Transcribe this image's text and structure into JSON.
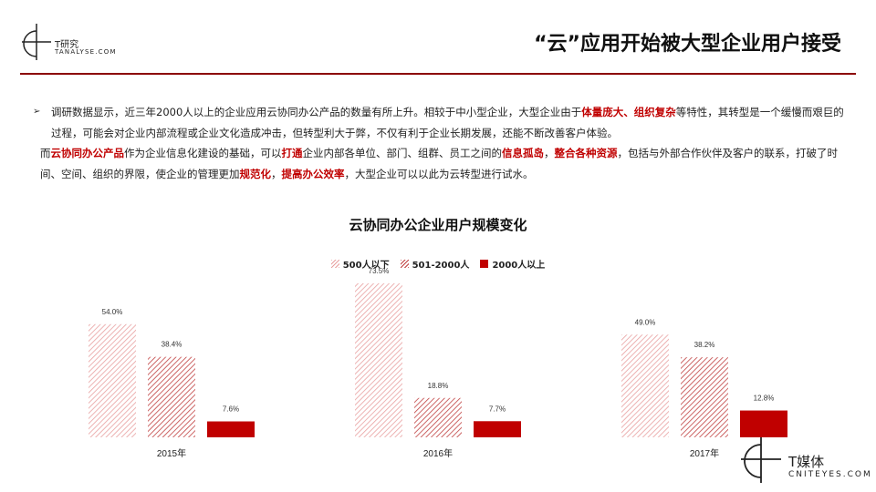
{
  "header": {
    "logo_brand": "T研究",
    "logo_site": "TANALYSE.COM",
    "title": "“云”应用开始被大型企业用户接受"
  },
  "body": {
    "bullet": "➢",
    "p1": [
      {
        "t": "调研数据显示，近三年2000人以上的企业应用云协同办公产品的数量有所上升。相较于中小型企业，大型企业由于",
        "hl": false
      },
      {
        "t": "体量庞大、组织复杂",
        "hl": true
      },
      {
        "t": "等特性，其转型是一个缓慢而艰巨的过程，可能会对企业内部流程或企业文化造成冲击，但转型利大于弊，不仅有利于企业长期发展，还能不断改善客户体验。",
        "hl": false
      }
    ],
    "p2": [
      {
        "t": "而",
        "hl": false
      },
      {
        "t": "云协同办公产品",
        "hl": true
      },
      {
        "t": "作为企业信息化建设的基础，可以",
        "hl": false
      },
      {
        "t": "打通",
        "hl": true
      },
      {
        "t": "企业内部各单位、部门、组群、员工之间的",
        "hl": false
      },
      {
        "t": "信息孤岛",
        "hl": true
      },
      {
        "t": "，",
        "hl": false
      },
      {
        "t": "整合各种资源",
        "hl": true
      },
      {
        "t": "，包括与外部合作伙伴及客户的联系，打破了时间、空间、组织的界限，使企业的管理更加",
        "hl": false
      },
      {
        "t": "规范化",
        "hl": true
      },
      {
        "t": "，",
        "hl": false
      },
      {
        "t": "提高办公效率",
        "hl": true
      },
      {
        "t": "，大型企业可以以此为云转型进行试水。",
        "hl": false
      }
    ]
  },
  "chart_data": {
    "type": "bar",
    "title": "云协同办公企业用户规模变化",
    "categories": [
      "2015年",
      "2016年",
      "2017年"
    ],
    "series": [
      {
        "name": "500人以下",
        "values": [
          54.0,
          73.5,
          49.0
        ],
        "labels": [
          "54.0%",
          "73.5%",
          "49.0%"
        ],
        "style": "light-hatch",
        "color": "#e8a0a0"
      },
      {
        "name": "501-2000人",
        "values": [
          38.4,
          18.8,
          38.2
        ],
        "labels": [
          "38.4%",
          "18.8%",
          "38.2%"
        ],
        "style": "mid-hatch",
        "color": "#c04040"
      },
      {
        "name": "2000人以上",
        "values": [
          7.6,
          7.7,
          12.8
        ],
        "labels": [
          "7.6%",
          "7.7%",
          "12.8%"
        ],
        "style": "solid",
        "color": "#c00000"
      }
    ],
    "ylim": [
      0,
      100
    ],
    "legend_position": "top-center",
    "grid": false
  },
  "footer": {
    "logo_brand": "T媒体",
    "logo_site": "CNITEYES.COM"
  }
}
